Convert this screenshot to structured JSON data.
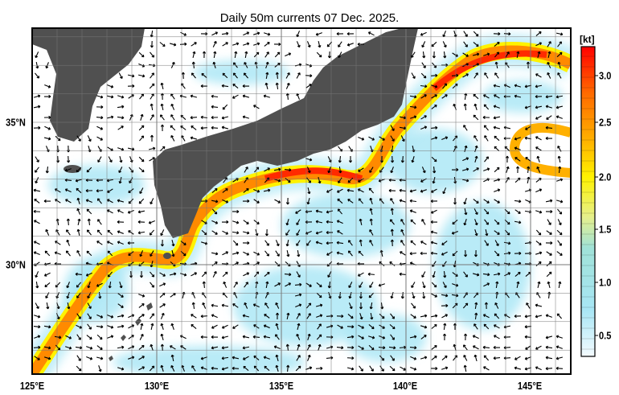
{
  "title": "Daily 50m currents 07 Dec. 2025.",
  "x_ticks": [
    "125°E",
    "130°E",
    "135°E",
    "140°E",
    "145°E"
  ],
  "y_ticks": [
    "35°N",
    "30°N"
  ],
  "colorbar": {
    "unit": "[kt]",
    "ticks": [
      "0.5",
      "1.0",
      "1.5",
      "2.0",
      "2.5",
      "3.0"
    ],
    "range": [
      0.3,
      3.3
    ],
    "colors": [
      "#f4fbff",
      "#a8e6f5",
      "#a0e2d8",
      "#e6f08c",
      "#fff200",
      "#ffb000",
      "#ff6a00",
      "#ff0000"
    ]
  },
  "map": {
    "lon_range": [
      125,
      146.7
    ],
    "lat_range": [
      26.2,
      38.3
    ],
    "land_color": "#505050",
    "shallow_color": "#c8c8c8"
  }
}
